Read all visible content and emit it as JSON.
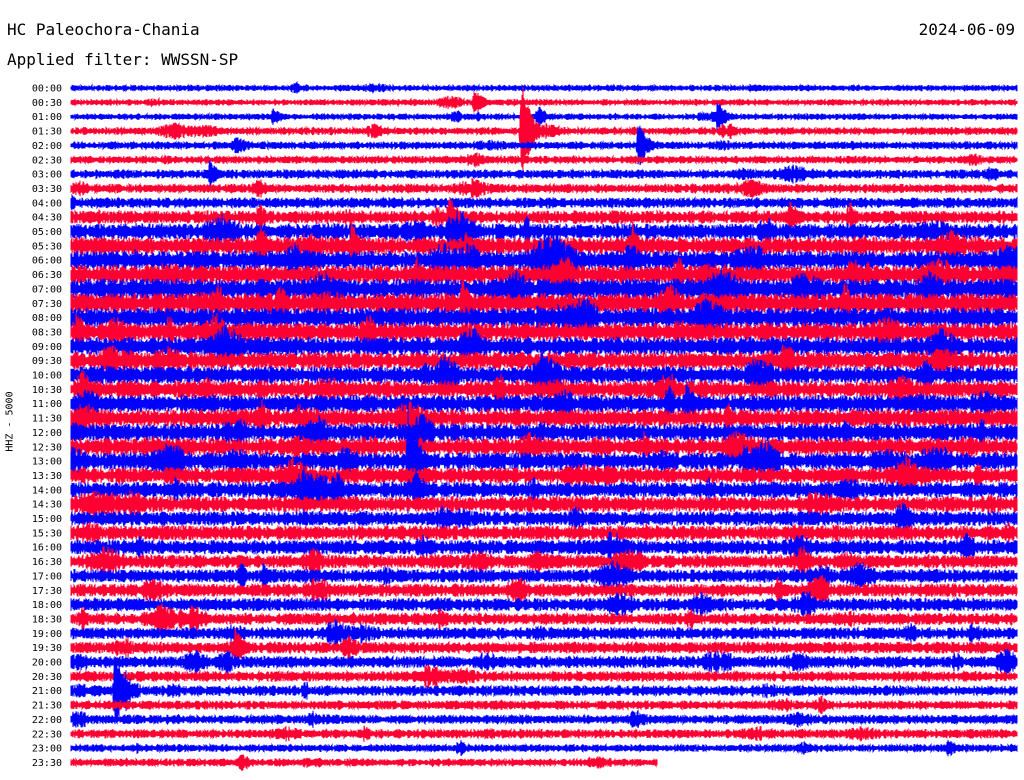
{
  "header": {
    "station": "HC Paleochora-Chania",
    "date": "2024-06-09",
    "filter": "Applied filter: WWSSN-SP"
  },
  "channel_label": "HHZ - 5000",
  "colors": {
    "even_hour_trace": "#0000ff",
    "half_hour_trace": "#ff0033"
  },
  "chart_data": {
    "type": "helicorder",
    "title": "HC Paleochora-Chania",
    "date": "2024-06-09",
    "filter": "WWSSN-SP",
    "channel": "HHZ - 5000",
    "row_minutes": 30,
    "row_labels": [
      "00:00",
      "00:30",
      "01:00",
      "01:30",
      "02:00",
      "02:30",
      "03:00",
      "03:30",
      "04:00",
      "04:30",
      "05:00",
      "05:30",
      "06:00",
      "06:30",
      "07:00",
      "07:30",
      "08:00",
      "08:30",
      "09:00",
      "09:30",
      "10:00",
      "10:30",
      "11:00",
      "11:30",
      "12:00",
      "12:30",
      "13:00",
      "13:30",
      "14:00",
      "14:30",
      "15:00",
      "15:30",
      "16:00",
      "16:30",
      "17:00",
      "17:30",
      "18:00",
      "18:30",
      "19:00",
      "19:30",
      "20:00",
      "20:30",
      "21:00",
      "21:30",
      "22:00",
      "22:30",
      "23:00",
      "23:30"
    ],
    "row_noise_levels": [
      0.2,
      0.2,
      0.2,
      0.25,
      0.25,
      0.25,
      0.3,
      0.3,
      0.35,
      0.45,
      0.55,
      0.6,
      0.65,
      0.65,
      0.7,
      0.7,
      0.7,
      0.65,
      0.65,
      0.6,
      0.6,
      0.6,
      0.6,
      0.6,
      0.6,
      0.6,
      0.6,
      0.55,
      0.55,
      0.55,
      0.5,
      0.5,
      0.5,
      0.45,
      0.45,
      0.45,
      0.45,
      0.4,
      0.4,
      0.4,
      0.4,
      0.35,
      0.35,
      0.3,
      0.3,
      0.3,
      0.25,
      0.25
    ],
    "row_fill": [
      1,
      1,
      1,
      1,
      1,
      1,
      1,
      1,
      1,
      1,
      1,
      1,
      1,
      1,
      1,
      1,
      1,
      1,
      1,
      1,
      1,
      1,
      1,
      1,
      1,
      1,
      1,
      1,
      1,
      1,
      1,
      1,
      1,
      1,
      1,
      1,
      1,
      1,
      1,
      1,
      1,
      1,
      1,
      1,
      1,
      1,
      1,
      0.62
    ],
    "events": [
      {
        "row": 1,
        "minute": 12.8,
        "amplitude": 2.0
      },
      {
        "row": 2,
        "minute": 6.4,
        "amplitude": 1.5
      },
      {
        "row": 2,
        "minute": 14.8,
        "amplitude": 1.8
      },
      {
        "row": 2,
        "minute": 20.5,
        "amplitude": 2.5
      },
      {
        "row": 3,
        "minute": 14.3,
        "amplitude": 7.0
      },
      {
        "row": 4,
        "minute": 18.0,
        "amplitude": 3.5
      },
      {
        "row": 6,
        "minute": 4.4,
        "amplitude": 2.0
      },
      {
        "row": 9,
        "minute": 22.8,
        "amplitude": 3.0
      },
      {
        "row": 11,
        "minute": 8.9,
        "amplitude": 4.0
      },
      {
        "row": 15,
        "minute": 12.4,
        "amplitude": 4.0
      },
      {
        "row": 16,
        "minute": 14.8,
        "amplitude": 2.5
      },
      {
        "row": 16,
        "minute": 20.5,
        "amplitude": 2.0
      },
      {
        "row": 22,
        "minute": 19.5,
        "amplitude": 3.5
      },
      {
        "row": 24,
        "minute": 24.5,
        "amplitude": 2.5
      },
      {
        "row": 26,
        "minute": 10.7,
        "amplitude": 9.0
      },
      {
        "row": 28,
        "minute": 3.3,
        "amplitude": 2.0
      },
      {
        "row": 28,
        "minute": 10.9,
        "amplitude": 4.0
      },
      {
        "row": 34,
        "minute": 6.1,
        "amplitude": 2.5
      },
      {
        "row": 35,
        "minute": 22.4,
        "amplitude": 2.5
      },
      {
        "row": 39,
        "minute": 5.2,
        "amplitude": 3.0
      },
      {
        "row": 42,
        "minute": 1.4,
        "amplitude": 5.5
      },
      {
        "row": 46,
        "minute": 27.8,
        "amplitude": 1.5
      }
    ]
  }
}
